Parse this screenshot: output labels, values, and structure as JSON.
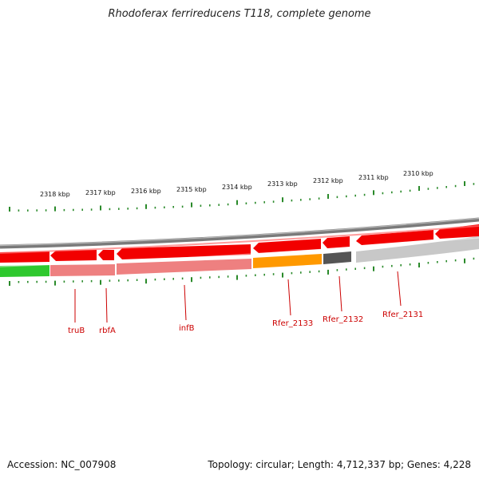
{
  "title": "Rhodoferax ferrireducens T118, complete genome",
  "coordinates": [
    "2318 kbp",
    "2317 kbp",
    "2316 kbp",
    "2315 kbp",
    "2314 kbp",
    "2313 kbp",
    "2312 kbp",
    "2311 kbp",
    "2310 kbp"
  ],
  "gene_labels": [
    "truB",
    "rbfA",
    "infB",
    "Rfer_2133",
    "Rfer_2132",
    "Rfer_2131"
  ],
  "colors": {
    "cds": "#ff0000",
    "cds_light": "#f08080",
    "backbone": "#888888",
    "orange": "#ff9900",
    "dark_gray": "#555555",
    "light_gray": "#c8c8c8",
    "green": "#33cc33",
    "tick": "#2a8a2a",
    "label": "#cc0000"
  },
  "footer": {
    "accession": "Accession: NC_007908",
    "stats": "Topology: circular; Length: 4,712,337 bp; Genes: 4,228"
  }
}
